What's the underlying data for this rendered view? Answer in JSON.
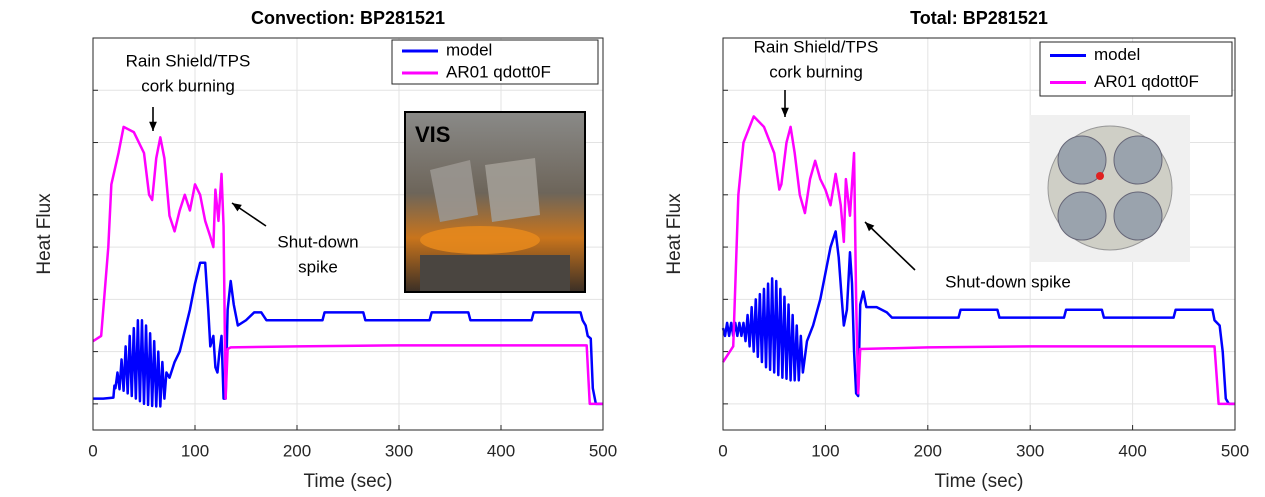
{
  "chart_data": [
    {
      "type": "line",
      "title": "Convection: BP281521",
      "xlabel": "Time (sec)",
      "ylabel": "Heat Flux",
      "xlim": [
        0,
        500
      ],
      "xticks": [
        0,
        100,
        200,
        300,
        400,
        500
      ],
      "ylim": [
        -0.5,
        7
      ],
      "ygrid": [
        0,
        1,
        2,
        3,
        4,
        5,
        6
      ],
      "grid": true,
      "legend": "upper right",
      "annotations": [
        [
          "Rain Shield/TPS",
          "cork burning"
        ],
        [
          "Shut-down",
          "spike"
        ]
      ],
      "inset_label": "VIS",
      "series": [
        {
          "name": "model",
          "color": "#0000ff",
          "x": [
            0,
            10,
            20,
            21,
            22,
            24,
            26,
            28,
            30,
            32,
            34,
            36,
            38,
            40,
            42,
            44,
            46,
            48,
            50,
            52,
            54,
            56,
            58,
            60,
            62,
            64,
            66,
            68,
            70,
            72,
            75,
            80,
            85,
            90,
            95,
            100,
            105,
            110,
            113,
            115,
            118,
            120,
            122,
            124,
            126,
            128,
            130,
            132,
            135,
            138,
            142,
            150,
            158,
            165,
            170,
            225,
            227,
            265,
            267,
            330,
            332,
            368,
            370,
            430,
            432,
            478,
            480,
            483,
            485,
            488,
            490,
            493,
            500
          ],
          "values": [
            0.1,
            0.1,
            0.12,
            0.35,
            0.3,
            0.6,
            0.28,
            0.85,
            0.25,
            1.1,
            0.2,
            1.3,
            0.15,
            1.45,
            0.1,
            1.6,
            0.05,
            1.6,
            0,
            1.5,
            -0.02,
            1.35,
            -0.04,
            1.2,
            -0.05,
            1.0,
            -0.05,
            0.8,
            0.1,
            0.6,
            0.5,
            0.8,
            1.0,
            1.4,
            1.8,
            2.3,
            2.7,
            2.7,
            1.8,
            1.1,
            1.3,
            0.7,
            0.6,
            1.0,
            1.3,
            0.1,
            0.1,
            1.8,
            2.35,
            1.9,
            1.5,
            1.6,
            1.75,
            1.75,
            1.6,
            1.6,
            1.75,
            1.75,
            1.6,
            1.6,
            1.75,
            1.75,
            1.6,
            1.6,
            1.75,
            1.75,
            1.6,
            1.5,
            1.3,
            1.25,
            0.3,
            0,
            0
          ]
        },
        {
          "name": "AR01 qdott0F",
          "color": "#ff00ff",
          "x": [
            0,
            8,
            15,
            18,
            25,
            30,
            40,
            50,
            55,
            58,
            62,
            66,
            70,
            75,
            80,
            85,
            90,
            95,
            100,
            105,
            110,
            115,
            118,
            120,
            123,
            126,
            128,
            130,
            132,
            135,
            200,
            300,
            400,
            484,
            487,
            500
          ],
          "values": [
            1.2,
            1.3,
            3.0,
            4.2,
            4.8,
            5.3,
            5.2,
            4.8,
            4.0,
            3.9,
            4.7,
            5.1,
            4.7,
            3.6,
            3.3,
            3.7,
            4.0,
            3.7,
            4.2,
            4.0,
            3.5,
            3.2,
            3.0,
            4.1,
            3.5,
            4.4,
            3.4,
            0.1,
            1.05,
            1.08,
            1.1,
            1.12,
            1.12,
            1.12,
            0,
            0
          ]
        }
      ]
    },
    {
      "type": "line",
      "title": "Total: BP281521",
      "xlabel": "Time (sec)",
      "ylabel": "Heat Flux",
      "xlim": [
        0,
        500
      ],
      "xticks": [
        0,
        100,
        200,
        300,
        400,
        500
      ],
      "ylim": [
        -0.5,
        7
      ],
      "ygrid": [
        0,
        1,
        2,
        3,
        4,
        5,
        6
      ],
      "grid": true,
      "legend": "upper right",
      "annotations": [
        [
          "Rain Shield/TPS",
          "cork burning"
        ],
        [
          "Shut-down spike"
        ]
      ],
      "series": [
        {
          "name": "model",
          "color": "#0000ff",
          "x": [
            0,
            2,
            4,
            6,
            8,
            10,
            12,
            14,
            16,
            18,
            20,
            22,
            24,
            26,
            28,
            30,
            32,
            34,
            36,
            38,
            40,
            42,
            44,
            46,
            48,
            50,
            52,
            54,
            56,
            58,
            60,
            62,
            64,
            66,
            68,
            70,
            72,
            74,
            76,
            78,
            82,
            88,
            95,
            100,
            105,
            110,
            113,
            116,
            118,
            121,
            124,
            126,
            128,
            130,
            132,
            134,
            137,
            140,
            150,
            160,
            165,
            230,
            232,
            268,
            270,
            333,
            335,
            370,
            372,
            440,
            442,
            478,
            480,
            485,
            488,
            491,
            494,
            500
          ],
          "values": [
            1.45,
            1.3,
            1.55,
            1.3,
            1.55,
            1.3,
            1.55,
            1.3,
            1.55,
            1.3,
            1.55,
            1.2,
            1.7,
            1.1,
            1.85,
            1.0,
            2.0,
            0.9,
            2.1,
            0.8,
            2.2,
            0.7,
            2.3,
            0.65,
            2.4,
            0.6,
            2.35,
            0.55,
            2.2,
            0.5,
            2.05,
            0.48,
            1.9,
            0.45,
            1.7,
            0.45,
            1.5,
            0.45,
            1.3,
            0.6,
            1.2,
            1.5,
            2.0,
            2.5,
            3.0,
            3.3,
            2.8,
            2.0,
            1.5,
            1.8,
            2.9,
            2.3,
            1.0,
            0.2,
            0.15,
            1.9,
            2.15,
            1.85,
            1.85,
            1.75,
            1.65,
            1.65,
            1.8,
            1.8,
            1.65,
            1.65,
            1.8,
            1.8,
            1.65,
            1.65,
            1.8,
            1.8,
            1.6,
            1.5,
            1.0,
            0.1,
            0,
            0
          ]
        },
        {
          "name": "AR01 qdott0F",
          "color": "#ff00ff",
          "x": [
            0,
            10,
            15,
            20,
            30,
            40,
            50,
            55,
            57,
            62,
            66,
            70,
            75,
            80,
            85,
            90,
            95,
            100,
            105,
            110,
            115,
            118,
            120,
            124,
            128,
            130,
            132,
            134,
            200,
            300,
            400,
            480,
            484,
            500
          ],
          "values": [
            0.8,
            1.1,
            4.0,
            5.0,
            5.5,
            5.3,
            4.8,
            4.1,
            4.2,
            5.0,
            5.3,
            4.8,
            4.0,
            3.65,
            4.3,
            4.65,
            4.3,
            4.1,
            3.8,
            4.4,
            3.8,
            3.1,
            4.3,
            3.6,
            4.8,
            2.0,
            0.2,
            1.05,
            1.08,
            1.1,
            1.1,
            1.1,
            0,
            0
          ]
        }
      ]
    }
  ]
}
